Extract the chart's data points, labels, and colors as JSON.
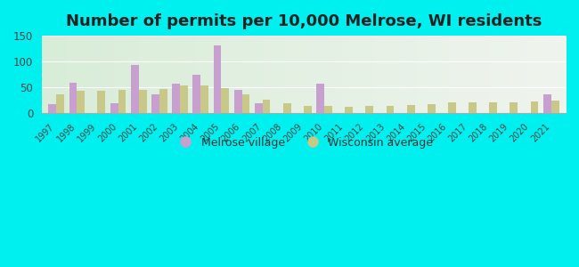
{
  "title": "Number of permits per 10,000 Melrose, WI residents",
  "years": [
    1997,
    1998,
    1999,
    2000,
    2001,
    2002,
    2003,
    2004,
    2005,
    2006,
    2007,
    2008,
    2009,
    2010,
    2011,
    2012,
    2013,
    2014,
    2015,
    2016,
    2017,
    2018,
    2019,
    2020,
    2021
  ],
  "melrose": [
    18,
    59,
    0,
    19,
    93,
    36,
    58,
    75,
    132,
    46,
    19,
    0,
    0,
    57,
    0,
    0,
    0,
    0,
    0,
    0,
    0,
    0,
    0,
    0,
    36
  ],
  "wisconsin": [
    36,
    44,
    44,
    45,
    45,
    47,
    53,
    54,
    48,
    36,
    26,
    19,
    15,
    15,
    12,
    14,
    15,
    16,
    17,
    21,
    21,
    21,
    21,
    23,
    25
  ],
  "melrose_color": "#c8a0d0",
  "wisconsin_color": "#c8c888",
  "ylim": [
    0,
    150
  ],
  "yticks": [
    0,
    50,
    100,
    150
  ],
  "outer_bg": "#00f0f0",
  "title_fontsize": 13,
  "legend_melrose": "Melrose village",
  "legend_wisconsin": "Wisconsin average",
  "grid_color": "#ffffff",
  "bottom_spine_color": "#aaaaaa"
}
